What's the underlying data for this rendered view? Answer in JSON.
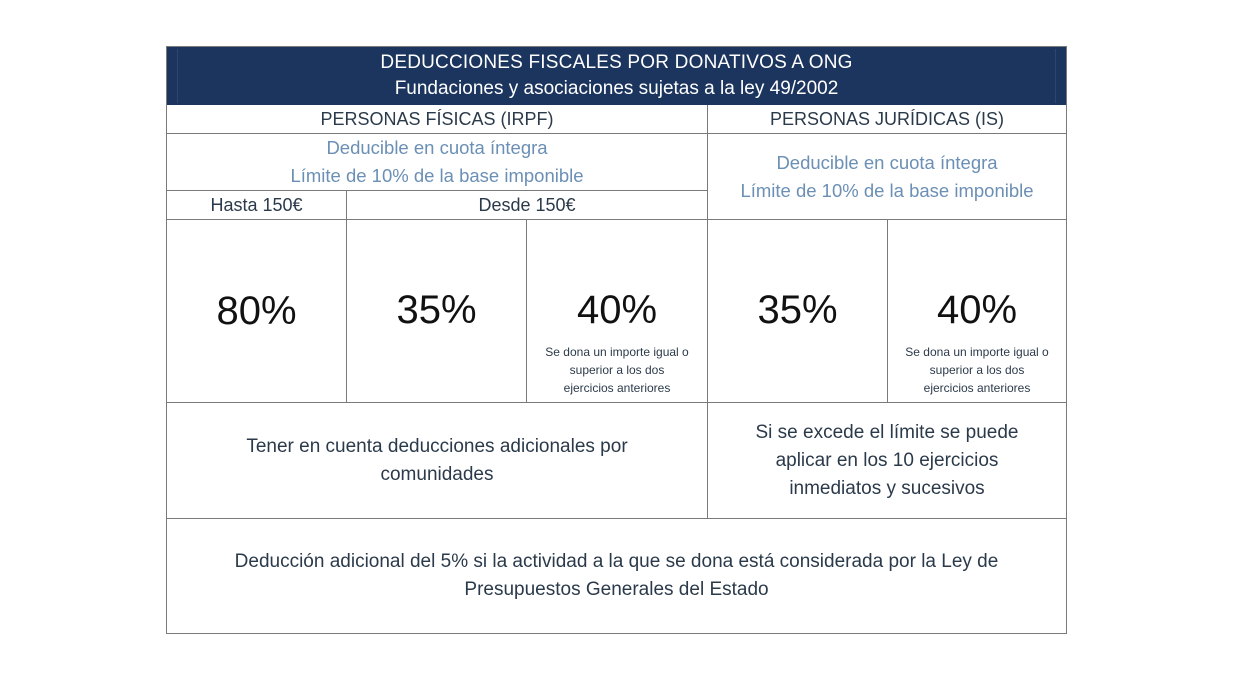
{
  "header": {
    "title": "DEDUCCIONES FISCALES POR DONATIVOS A ONG",
    "subtitle": "Fundaciones y asociaciones sujetas a la ley 49/2002"
  },
  "fisicas": {
    "heading": "PERSONAS FÍSICAS (IRPF)",
    "line1": "Deducible en cuota íntegra",
    "line2": "Límite de 10% de la base imponible",
    "hasta": "Hasta 150€",
    "desde": "Desde 150€",
    "pct_hasta": "80%",
    "pct_desde": "35%",
    "pct_recurrente": "40%",
    "note_recurrente_1": "Se dona un importe igual o",
    "note_recurrente_2": "superior a los dos",
    "note_recurrente_3": "ejercicios anteriores",
    "extra_1": "Tener en cuenta deducciones adicionales por",
    "extra_2": "comunidades"
  },
  "juridicas": {
    "heading": "PERSONAS JURÍDICAS (IS)",
    "line1": "Deducible en cuota íntegra",
    "line2": "Límite de 10% de la base imponible",
    "pct_base": "35%",
    "pct_recurrente": "40%",
    "note_recurrente_1": "Se dona un importe igual o",
    "note_recurrente_2": "superior a los dos",
    "note_recurrente_3": "ejercicios anteriores",
    "extra_1": "Si se excede el límite se puede",
    "extra_2": "aplicar en los 10 ejercicios",
    "extra_3": "inmediatos y sucesivos"
  },
  "footer": {
    "line1": "Deducción adicional del 5% si la actividad a la que se dona está considerada por la Ley de",
    "line2": "Presupuestos Generales del Estado"
  },
  "colors": {
    "banner": "#1c355e",
    "accent_text": "#6b8fb5",
    "border": "#7a7a7a"
  }
}
